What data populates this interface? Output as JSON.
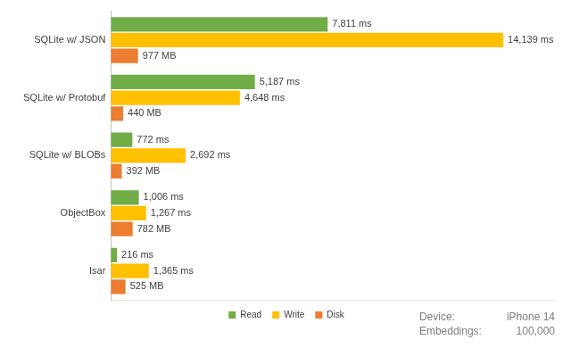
{
  "chart_data": {
    "type": "bar",
    "orientation": "horizontal",
    "categories": [
      "SQLite w/ JSON",
      "SQLite w/ Protobuf",
      "SQLite w/ BLOBs",
      "ObjectBox",
      "Isar"
    ],
    "series": [
      {
        "name": "Read",
        "color": "#70ad47",
        "values": [
          7811,
          5187,
          772,
          1006,
          216
        ],
        "value_labels": [
          "7,811 ms",
          "5,187 ms",
          "772 ms",
          "1,006 ms",
          "216 ms"
        ]
      },
      {
        "name": "Write",
        "color": "#ffc000",
        "values": [
          14139,
          4648,
          2692,
          1267,
          1365
        ],
        "value_labels": [
          "14,139 ms",
          "4,648 ms",
          "2,692 ms",
          "1,267 ms",
          "1,365 ms"
        ]
      },
      {
        "name": "Disk",
        "color": "#ed7d31",
        "values": [
          977,
          440,
          392,
          782,
          525
        ],
        "value_labels": [
          "977 MB",
          "440 MB",
          "392 MB",
          "782 MB",
          "525 MB"
        ]
      }
    ],
    "xlim": [
      0,
      16000
    ],
    "grid": false,
    "legend": "bottom",
    "data_labels": true,
    "tick_labels": "y",
    "annotations": [
      [
        "Device:",
        "iPhone 14"
      ],
      [
        "Embeddings:",
        "100,000"
      ]
    ]
  }
}
